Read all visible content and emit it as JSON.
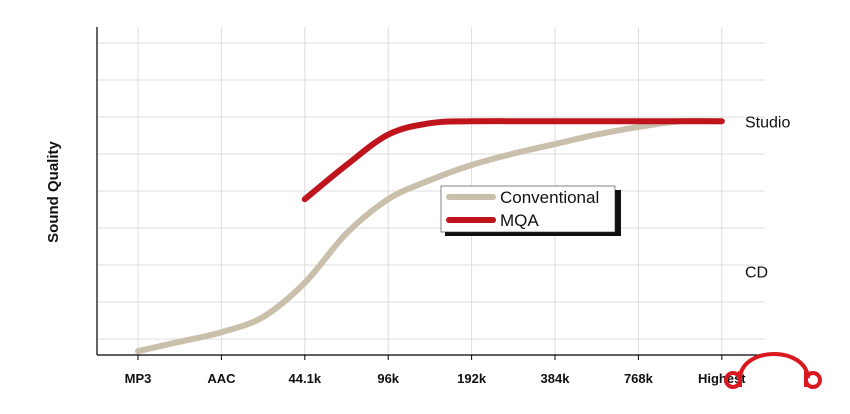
{
  "chart_data": {
    "type": "line",
    "title": "",
    "xlabel": "",
    "ylabel": "Sound Quality",
    "categories": [
      "MP3",
      "AAC",
      "44.1k",
      "96k",
      "192k",
      "384k",
      "768k",
      "Highest"
    ],
    "ylim": [
      0,
      10
    ],
    "grid": true,
    "legend_position": "center",
    "annotations": [
      {
        "text": "Studio",
        "y": 6.15
      },
      {
        "text": "CD",
        "y": 2.2
      }
    ],
    "series": [
      {
        "name": "Conventional",
        "color": "#c9bfaa",
        "x": [
          0,
          0.5,
          1,
          1.5,
          2,
          2.5,
          3,
          3.5,
          4,
          4.5,
          5,
          5.5,
          6,
          6.5,
          7
        ],
        "values": [
          0.1,
          0.35,
          0.6,
          1.0,
          1.9,
          3.2,
          4.1,
          4.6,
          5.0,
          5.3,
          5.55,
          5.8,
          6.0,
          6.15,
          6.15
        ]
      },
      {
        "name": "MQA",
        "color": "#c0141c",
        "x": [
          2,
          2.5,
          3,
          3.5,
          4,
          5,
          6,
          7
        ],
        "values": [
          4.1,
          5.0,
          5.8,
          6.1,
          6.15,
          6.15,
          6.15,
          6.15
        ]
      }
    ]
  },
  "logo": {
    "name": "mqa-logo",
    "color": "#d9191f"
  }
}
